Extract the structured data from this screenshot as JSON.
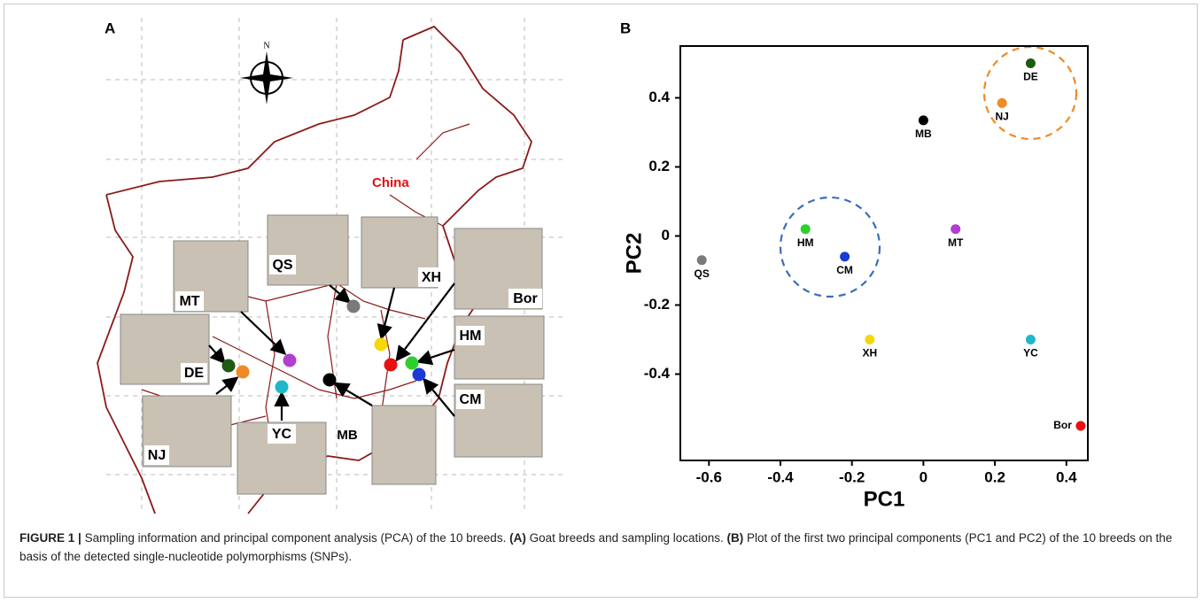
{
  "panel_a": {
    "label": "A",
    "country": "China",
    "north": "N",
    "breeds": [
      "MT",
      "QS",
      "XH",
      "Bor",
      "HM",
      "CM",
      "DE",
      "NJ",
      "YC",
      "MB"
    ]
  },
  "chart_data": {
    "type": "scatter",
    "panel_label": "B",
    "x_label": "PC1",
    "y_label": "PC2",
    "labels": [
      "DE",
      "NJ",
      "MB",
      "MT",
      "HM",
      "CM",
      "QS",
      "XH",
      "YC",
      "Bor"
    ],
    "x": [
      0.3,
      0.22,
      0.0,
      0.09,
      -0.33,
      -0.22,
      -0.62,
      -0.15,
      0.3,
      0.44
    ],
    "values": [
      0.5,
      0.385,
      0.335,
      0.02,
      0.02,
      -0.06,
      -0.07,
      -0.3,
      -0.3,
      -0.55
    ],
    "colors": [
      "#1e5a12",
      "#f08a24",
      "#000000",
      "#b040d0",
      "#2ed02e",
      "#1a3ad8",
      "#7a7a7a",
      "#f5d80a",
      "#20b8c8",
      "#e81010"
    ],
    "xlim": [
      -0.68,
      0.46
    ],
    "ylim": [
      -0.65,
      0.55
    ],
    "xticks": [
      -0.6,
      -0.4,
      -0.2,
      0,
      0.2,
      0.4
    ],
    "yticks": [
      -0.4,
      -0.2,
      0,
      0.2,
      0.4
    ]
  },
  "caption": {
    "figure": "FIGURE 1 |",
    "text": "Sampling information and principal component analysis (PCA) of the 10 breeds.",
    "a_tag": "(A)",
    "a_text": "Goat breeds and sampling locations.",
    "b_tag": "(B)",
    "b_text": "Plot of the first two principal components (PC1 and PC2) of the 10 breeds on the basis of the detected single-nucleotide polymorphisms (SNPs)."
  }
}
